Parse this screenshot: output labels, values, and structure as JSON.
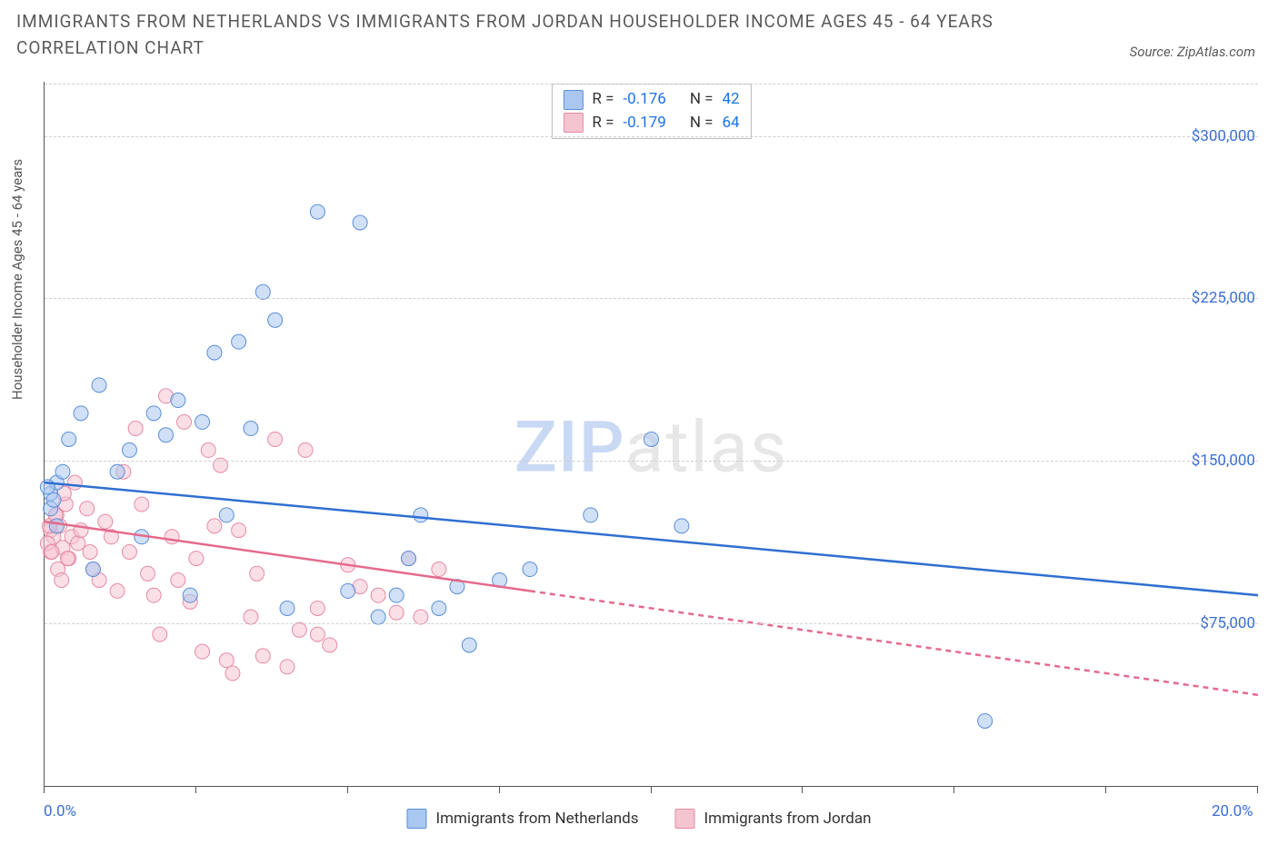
{
  "title": "IMMIGRANTS FROM NETHERLANDS VS IMMIGRANTS FROM JORDAN HOUSEHOLDER INCOME AGES 45 - 64 YEARS CORRELATION CHART",
  "source_label": "Source: ZipAtlas.com",
  "watermark_zip": "ZIP",
  "watermark_atlas": "atlas",
  "ylabel": "Householder Income Ages 45 - 64 years",
  "chart": {
    "type": "scatter",
    "xlim": [
      0,
      20
    ],
    "ylim": [
      0,
      325000
    ],
    "xtick_positions": [
      0,
      2.5,
      5,
      7.5,
      10,
      12.5,
      15,
      17.5,
      20
    ],
    "xtick_labels": {
      "0": "0.0%",
      "20": "20.0%"
    },
    "ytick_positions": [
      75000,
      150000,
      225000,
      300000
    ],
    "ytick_labels": [
      "$75,000",
      "$150,000",
      "$225,000",
      "$300,000"
    ],
    "grid_color": "#d0d0d0",
    "background": "#ffffff",
    "marker_radius": 8,
    "marker_opacity": 0.55,
    "line_width": 2.5,
    "series": [
      {
        "id": "netherlands",
        "label": "Immigrants from Netherlands",
        "color_fill": "#a9c7f0",
        "color_stroke": "#5a8fd6",
        "line_color": "#2f6fd0",
        "R": "-0.176",
        "N": "42",
        "trend": {
          "x1": 0,
          "y1": 140000,
          "x2": 20,
          "y2": 88000,
          "dashed_from_x": null
        },
        "points": [
          [
            0.1,
            135000
          ],
          [
            0.2,
            140000
          ],
          [
            0.1,
            128000
          ],
          [
            0.3,
            145000
          ],
          [
            0.15,
            132000
          ],
          [
            0.2,
            120000
          ],
          [
            0.4,
            160000
          ],
          [
            0.6,
            172000
          ],
          [
            0.8,
            100000
          ],
          [
            0.9,
            185000
          ],
          [
            1.2,
            145000
          ],
          [
            1.4,
            155000
          ],
          [
            1.6,
            115000
          ],
          [
            1.8,
            172000
          ],
          [
            2.0,
            162000
          ],
          [
            2.2,
            178000
          ],
          [
            2.4,
            88000
          ],
          [
            2.6,
            168000
          ],
          [
            2.8,
            200000
          ],
          [
            3.0,
            125000
          ],
          [
            3.2,
            205000
          ],
          [
            3.4,
            165000
          ],
          [
            3.6,
            228000
          ],
          [
            3.8,
            215000
          ],
          [
            4.0,
            82000
          ],
          [
            4.5,
            265000
          ],
          [
            5.0,
            90000
          ],
          [
            5.2,
            260000
          ],
          [
            5.5,
            78000
          ],
          [
            5.8,
            88000
          ],
          [
            6.0,
            105000
          ],
          [
            6.2,
            125000
          ],
          [
            6.5,
            82000
          ],
          [
            6.8,
            92000
          ],
          [
            7.0,
            65000
          ],
          [
            7.5,
            95000
          ],
          [
            8.0,
            100000
          ],
          [
            9.0,
            125000
          ],
          [
            10.0,
            160000
          ],
          [
            10.5,
            120000
          ],
          [
            15.5,
            30000
          ],
          [
            0.05,
            138000
          ]
        ]
      },
      {
        "id": "jordan",
        "label": "Immigrants from Jordan",
        "color_fill": "#f5c4d1",
        "color_stroke": "#e68aa5",
        "line_color": "#e46a8c",
        "R": "-0.179",
        "N": "64",
        "trend": {
          "x1": 0,
          "y1": 122000,
          "x2": 20,
          "y2": 42000,
          "dashed_from_x": 8
        },
        "points": [
          [
            0.1,
            118000
          ],
          [
            0.15,
            115000
          ],
          [
            0.1,
            108000
          ],
          [
            0.2,
            125000
          ],
          [
            0.25,
            120000
          ],
          [
            0.3,
            110000
          ],
          [
            0.35,
            130000
          ],
          [
            0.4,
            105000
          ],
          [
            0.45,
            115000
          ],
          [
            0.5,
            140000
          ],
          [
            0.55,
            112000
          ],
          [
            0.6,
            118000
          ],
          [
            0.7,
            128000
          ],
          [
            0.75,
            108000
          ],
          [
            0.8,
            100000
          ],
          [
            0.9,
            95000
          ],
          [
            1.0,
            122000
          ],
          [
            1.1,
            115000
          ],
          [
            1.2,
            90000
          ],
          [
            1.3,
            145000
          ],
          [
            1.4,
            108000
          ],
          [
            1.5,
            165000
          ],
          [
            1.6,
            130000
          ],
          [
            1.7,
            98000
          ],
          [
            1.8,
            88000
          ],
          [
            1.9,
            70000
          ],
          [
            2.0,
            180000
          ],
          [
            2.1,
            115000
          ],
          [
            2.2,
            95000
          ],
          [
            2.3,
            168000
          ],
          [
            2.4,
            85000
          ],
          [
            2.5,
            105000
          ],
          [
            2.6,
            62000
          ],
          [
            2.7,
            155000
          ],
          [
            2.8,
            120000
          ],
          [
            2.9,
            148000
          ],
          [
            3.0,
            58000
          ],
          [
            3.1,
            52000
          ],
          [
            3.2,
            118000
          ],
          [
            3.4,
            78000
          ],
          [
            3.5,
            98000
          ],
          [
            3.6,
            60000
          ],
          [
            3.8,
            160000
          ],
          [
            4.0,
            55000
          ],
          [
            4.2,
            72000
          ],
          [
            4.3,
            155000
          ],
          [
            4.5,
            82000
          ],
          [
            4.5,
            70000
          ],
          [
            4.7,
            65000
          ],
          [
            5.0,
            102000
          ],
          [
            5.2,
            92000
          ],
          [
            5.5,
            88000
          ],
          [
            5.8,
            80000
          ],
          [
            6.0,
            105000
          ],
          [
            6.2,
            78000
          ],
          [
            6.5,
            100000
          ],
          [
            0.05,
            112000
          ],
          [
            0.08,
            120000
          ],
          [
            0.12,
            108000
          ],
          [
            0.18,
            125000
          ],
          [
            0.22,
            100000
          ],
          [
            0.28,
            95000
          ],
          [
            0.32,
            135000
          ],
          [
            0.38,
            105000
          ]
        ]
      }
    ],
    "legend_stats": {
      "R_label": "R =",
      "N_label": "N ="
    }
  }
}
